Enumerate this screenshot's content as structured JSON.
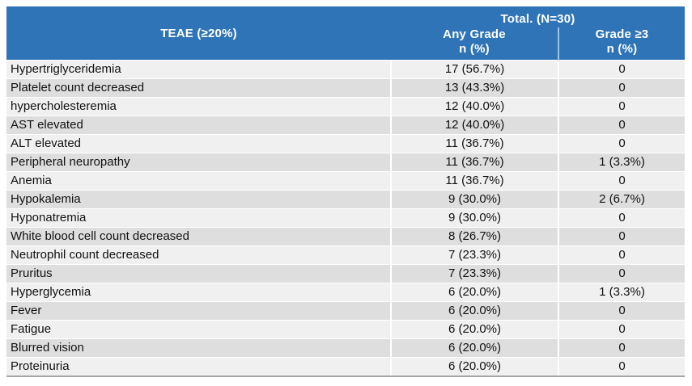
{
  "chart_data": {
    "type": "table",
    "header": {
      "col1": "TEAE (≥20%)",
      "group": "Total. (N=30)",
      "col2_line1": "Any Grade",
      "col2_line2": "n (%)",
      "col3_line1": "Grade ≥3",
      "col3_line2": "n (%)"
    },
    "rows": [
      {
        "teae": "Hypertriglyceridemia",
        "any_grade": "17 (56.7%)",
        "grade_ge3": "0"
      },
      {
        "teae": "Platelet count decreased",
        "any_grade": "13 (43.3%)",
        "grade_ge3": "0"
      },
      {
        "teae": "hypercholesteremia",
        "any_grade": "12 (40.0%)",
        "grade_ge3": "0"
      },
      {
        "teae": "AST elevated",
        "any_grade": "12 (40.0%)",
        "grade_ge3": "0"
      },
      {
        "teae": "ALT elevated",
        "any_grade": "11 (36.7%)",
        "grade_ge3": "0"
      },
      {
        "teae": "Peripheral neuropathy",
        "any_grade": "11 (36.7%)",
        "grade_ge3": "1 (3.3%)"
      },
      {
        "teae": "Anemia",
        "any_grade": "11 (36.7%)",
        "grade_ge3": "0"
      },
      {
        "teae": "Hypokalemia",
        "any_grade": "9 (30.0%)",
        "grade_ge3": "2 (6.7%)"
      },
      {
        "teae": "Hyponatremia",
        "any_grade": "9 (30.0%)",
        "grade_ge3": "0"
      },
      {
        "teae": "White blood cell count decreased",
        "any_grade": "8 (26.7%)",
        "grade_ge3": "0"
      },
      {
        "teae": "Neutrophil count decreased",
        "any_grade": "7 (23.3%)",
        "grade_ge3": "0"
      },
      {
        "teae": "Pruritus",
        "any_grade": "7 (23.3%)",
        "grade_ge3": "0"
      },
      {
        "teae": "Hyperglycemia",
        "any_grade": "6 (20.0%)",
        "grade_ge3": "1 (3.3%)"
      },
      {
        "teae": "Fever",
        "any_grade": "6 (20.0%)",
        "grade_ge3": "0"
      },
      {
        "teae": "Fatigue",
        "any_grade": "6 (20.0%)",
        "grade_ge3": "0"
      },
      {
        "teae": "Blurred vision",
        "any_grade": "6 (20.0%)",
        "grade_ge3": "0"
      },
      {
        "teae": "Proteinuria",
        "any_grade": "6 (20.0%)",
        "grade_ge3": "0"
      }
    ]
  },
  "colors": {
    "header_bg": "#2E74B6",
    "header_text": "#FFFFFF",
    "header_divider": "#9DC3E6",
    "row_light": "#F0F0F0",
    "row_dark": "#DEDEDE",
    "row_divider": "#FFFFFF",
    "bottom_border": "#A6A6A6",
    "body_text": "#111111"
  }
}
